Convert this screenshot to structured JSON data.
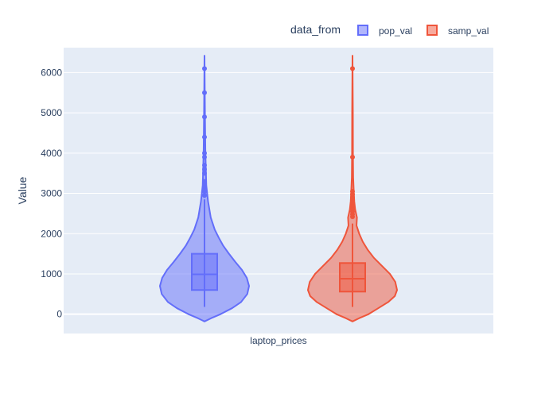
{
  "chart_data": {
    "type": "violin",
    "legend": {
      "title": "data_from",
      "placement": "top-right",
      "entries": [
        {
          "label": "pop_val",
          "color": "#636efa"
        },
        {
          "label": "samp_val",
          "color": "#ef553b"
        }
      ]
    },
    "ylabel": "Value",
    "xlabel": "laptop_prices",
    "ylim": [
      -480,
      6620
    ],
    "yticks": [
      0,
      1000,
      2000,
      3000,
      4000,
      5000,
      6000
    ],
    "grid": true,
    "series": [
      {
        "name": "pop_val",
        "color": "#636efa",
        "box": {
          "min": 180,
          "q1": 600,
          "median": 990,
          "q3": 1500,
          "max": 2850
        },
        "kde_extent": [
          -180,
          6420
        ],
        "kde_profile": [
          [
            -180,
            0.0
          ],
          [
            -100,
            0.15
          ],
          [
            0,
            0.36
          ],
          [
            150,
            0.62
          ],
          [
            300,
            0.82
          ],
          [
            500,
            0.96
          ],
          [
            700,
            1.0
          ],
          [
            900,
            0.95
          ],
          [
            1100,
            0.84
          ],
          [
            1300,
            0.69
          ],
          [
            1500,
            0.55
          ],
          [
            1700,
            0.42
          ],
          [
            1900,
            0.32
          ],
          [
            2100,
            0.23
          ],
          [
            2400,
            0.14
          ],
          [
            2800,
            0.08
          ],
          [
            3200,
            0.04
          ],
          [
            4000,
            0.02
          ],
          [
            5000,
            0.01
          ],
          [
            6420,
            0.0
          ]
        ],
        "outliers": [
          2950,
          3050,
          3150,
          3250,
          3300,
          3500,
          3600,
          3700,
          3900,
          4000,
          4400,
          4900,
          5500,
          6100
        ]
      },
      {
        "name": "samp_val",
        "color": "#ef553b",
        "box": {
          "min": 180,
          "q1": 560,
          "median": 880,
          "q3": 1270,
          "max": 2250
        },
        "kde_extent": [
          -180,
          6420
        ],
        "kde_profile": [
          [
            -180,
            0.0
          ],
          [
            -100,
            0.15
          ],
          [
            0,
            0.36
          ],
          [
            150,
            0.58
          ],
          [
            300,
            0.8
          ],
          [
            450,
            0.95
          ],
          [
            600,
            1.0
          ],
          [
            800,
            0.96
          ],
          [
            1000,
            0.84
          ],
          [
            1200,
            0.66
          ],
          [
            1400,
            0.48
          ],
          [
            1600,
            0.34
          ],
          [
            1800,
            0.23
          ],
          [
            2000,
            0.15
          ],
          [
            2200,
            0.09
          ],
          [
            2400,
            0.1
          ],
          [
            2600,
            0.06
          ],
          [
            2800,
            0.04
          ],
          [
            3000,
            0.03
          ],
          [
            3400,
            0.015
          ],
          [
            4000,
            0.01
          ],
          [
            5000,
            0.008
          ],
          [
            6420,
            0.0
          ]
        ],
        "outliers": [
          2420,
          2480,
          2550,
          2620,
          2700,
          2780,
          2850,
          2900,
          2980,
          3050,
          3900,
          6100
        ]
      }
    ]
  }
}
